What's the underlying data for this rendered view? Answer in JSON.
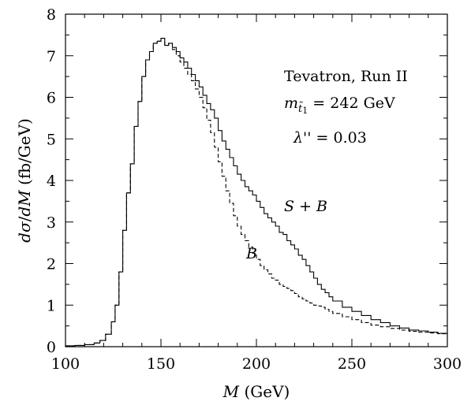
{
  "chart_data": {
    "type": "line",
    "title": "",
    "xlabel": "M (GeV)",
    "ylabel": "dσ/dM (fb/GeV)",
    "xlim": [
      100,
      300
    ],
    "ylim": [
      0,
      8
    ],
    "xticks": [
      100,
      150,
      200,
      250,
      300
    ],
    "yticks": [
      0,
      1,
      2,
      3,
      4,
      5,
      6,
      7,
      8
    ],
    "grid": false,
    "step": true,
    "annotations": [
      {
        "text": "Tevatron, Run II"
      },
      {
        "text": "m_t̃1 = 242 GeV"
      },
      {
        "text": "λ'' = 0.03"
      }
    ],
    "series": [
      {
        "name": "S + B",
        "style": "solid",
        "x": [
          100,
          105,
          110,
          115,
          118,
          121,
          124,
          126,
          128,
          130,
          132,
          134,
          136,
          138,
          140,
          142,
          144,
          146,
          148,
          150,
          152,
          154,
          156,
          158,
          160,
          162,
          164,
          166,
          168,
          170,
          172,
          174,
          176,
          178,
          180,
          182,
          184,
          186,
          188,
          190,
          192,
          194,
          196,
          198,
          200,
          202,
          204,
          206,
          208,
          210,
          212,
          214,
          216,
          218,
          220,
          222,
          224,
          226,
          228,
          230,
          232,
          234,
          236,
          238,
          240,
          245,
          250,
          255,
          260,
          265,
          270,
          275,
          280,
          285,
          290,
          295,
          300
        ],
        "values": [
          0.02,
          0.03,
          0.05,
          0.09,
          0.15,
          0.3,
          0.6,
          1.0,
          1.8,
          2.8,
          3.7,
          4.4,
          5.3,
          5.9,
          6.5,
          6.9,
          7.1,
          7.3,
          7.35,
          7.42,
          7.25,
          7.3,
          7.2,
          7.1,
          6.95,
          6.85,
          6.7,
          6.55,
          6.4,
          6.25,
          6.05,
          5.85,
          5.7,
          5.5,
          5.2,
          4.95,
          4.75,
          4.55,
          4.35,
          4.15,
          4.0,
          3.85,
          3.75,
          3.65,
          3.5,
          3.35,
          3.2,
          3.1,
          3.0,
          2.9,
          2.75,
          2.7,
          2.55,
          2.45,
          2.35,
          2.2,
          2.1,
          1.95,
          1.8,
          1.65,
          1.5,
          1.38,
          1.3,
          1.2,
          1.1,
          0.95,
          0.85,
          0.75,
          0.65,
          0.58,
          0.5,
          0.45,
          0.4,
          0.38,
          0.35,
          0.32,
          0.3
        ]
      },
      {
        "name": "B",
        "style": "dashed",
        "x": [
          100,
          105,
          110,
          115,
          118,
          121,
          124,
          126,
          128,
          130,
          132,
          134,
          136,
          138,
          140,
          142,
          144,
          146,
          148,
          150,
          152,
          154,
          156,
          158,
          160,
          162,
          164,
          166,
          168,
          170,
          172,
          174,
          176,
          178,
          180,
          182,
          184,
          186,
          188,
          190,
          192,
          194,
          196,
          198,
          200,
          202,
          204,
          206,
          208,
          210,
          212,
          214,
          216,
          218,
          220,
          222,
          224,
          226,
          228,
          230,
          232,
          234,
          236,
          238,
          240,
          245,
          250,
          255,
          260,
          265,
          270,
          275,
          280,
          285,
          290,
          295,
          300
        ],
        "values": [
          0.02,
          0.03,
          0.05,
          0.09,
          0.15,
          0.3,
          0.6,
          1.0,
          1.8,
          2.8,
          3.7,
          4.4,
          5.3,
          5.9,
          6.5,
          6.9,
          7.1,
          7.3,
          7.35,
          7.42,
          7.25,
          7.3,
          7.15,
          7.0,
          6.85,
          6.7,
          6.55,
          6.4,
          6.2,
          6.0,
          5.75,
          5.45,
          5.15,
          4.8,
          4.45,
          4.1,
          3.75,
          3.45,
          3.15,
          2.9,
          2.7,
          2.55,
          2.4,
          2.25,
          2.1,
          1.95,
          1.85,
          1.75,
          1.65,
          1.6,
          1.5,
          1.45,
          1.4,
          1.35,
          1.28,
          1.2,
          1.15,
          1.1,
          1.05,
          1.0,
          0.98,
          0.95,
          0.9,
          0.85,
          0.8,
          0.72,
          0.65,
          0.58,
          0.52,
          0.48,
          0.44,
          0.4,
          0.37,
          0.35,
          0.33,
          0.31,
          0.3
        ]
      }
    ]
  }
}
